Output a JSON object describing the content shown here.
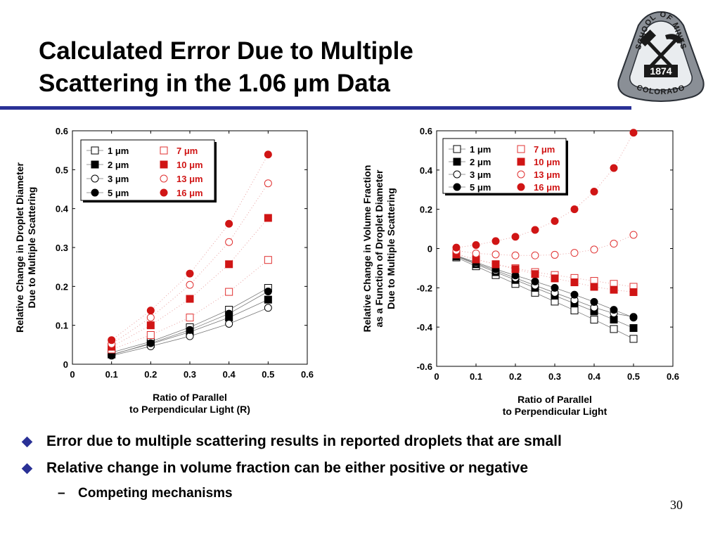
{
  "slide": {
    "title_lines": [
      "Calculated Error Due to Multiple",
      "Scattering in the 1.06 μm Data"
    ],
    "page_number": "30",
    "accent_color": "#2a3196"
  },
  "logo": {
    "top_text": "SCHOOL OF MINES",
    "year": "1874",
    "bottom_text": "COLORADO"
  },
  "bullets": [
    {
      "level": 1,
      "text": "Error due to multiple scattering results in reported droplets that are small"
    },
    {
      "level": 1,
      "text": "Relative change in volume fraction can be either positive or negative"
    },
    {
      "level": 2,
      "text": "Competing mechanisms"
    }
  ],
  "chart_data": [
    {
      "type": "scatter",
      "xlabel": "Ratio of Parallel\nto Perpendicular Light (R)",
      "ylabel": "Relative Change in Droplet Diameter\nDue to Multiple Scattering",
      "xlim": [
        0,
        0.6
      ],
      "ylim": [
        0,
        0.6
      ],
      "xticks": [
        "0",
        "0.1",
        "0.2",
        "0.3",
        "0.4",
        "0.5",
        "0.6"
      ],
      "yticks": [
        "0",
        "0.1",
        "0.2",
        "0.3",
        "0.4",
        "0.5",
        "0.6"
      ],
      "legend_position": "top-left",
      "series": [
        {
          "name": "1 μm",
          "marker": "square",
          "color": "#000000",
          "x": [
            0.1,
            0.2,
            0.3,
            0.4,
            0.5
          ],
          "y": [
            0.03,
            0.058,
            0.095,
            0.14,
            0.196
          ]
        },
        {
          "name": "2 μm",
          "marker": "square-filled",
          "color": "#000000",
          "x": [
            0.1,
            0.2,
            0.3,
            0.4,
            0.5
          ],
          "y": [
            0.025,
            0.052,
            0.083,
            0.12,
            0.166
          ]
        },
        {
          "name": "3 μm",
          "marker": "circle",
          "color": "#000000",
          "x": [
            0.1,
            0.2,
            0.3,
            0.4,
            0.5
          ],
          "y": [
            0.022,
            0.046,
            0.072,
            0.104,
            0.145
          ]
        },
        {
          "name": "5 μm",
          "marker": "circle-filled",
          "color": "#000000",
          "x": [
            0.1,
            0.2,
            0.3,
            0.4,
            0.5
          ],
          "y": [
            0.024,
            0.054,
            0.088,
            0.13,
            0.187
          ]
        },
        {
          "name": "7 μm",
          "marker": "square",
          "color": "#e03030",
          "x": [
            0.1,
            0.2,
            0.3,
            0.4,
            0.5
          ],
          "y": [
            0.038,
            0.075,
            0.12,
            0.186,
            0.268
          ]
        },
        {
          "name": "10 μm",
          "marker": "square-filled",
          "color": "#d01515",
          "x": [
            0.1,
            0.2,
            0.3,
            0.4,
            0.5
          ],
          "y": [
            0.045,
            0.1,
            0.168,
            0.257,
            0.376
          ]
        },
        {
          "name": "13 μm",
          "marker": "circle",
          "color": "#e03030",
          "x": [
            0.1,
            0.2,
            0.3,
            0.4,
            0.5
          ],
          "y": [
            0.052,
            0.12,
            0.204,
            0.314,
            0.465
          ]
        },
        {
          "name": "16 μm",
          "marker": "circle-filled",
          "color": "#d01515",
          "x": [
            0.1,
            0.2,
            0.3,
            0.4,
            0.5
          ],
          "y": [
            0.062,
            0.138,
            0.233,
            0.361,
            0.539
          ]
        }
      ]
    },
    {
      "type": "scatter",
      "xlabel": "Ratio of Parallel\nto Perpendicular Light",
      "ylabel": "Relative Change in Volume Fraction\nas a Function of Droplet Diameter\nDue to Multiple Scattering",
      "xlim": [
        0,
        0.6
      ],
      "ylim": [
        -0.6,
        0.6
      ],
      "xticks": [
        "0",
        "0.1",
        "0.2",
        "0.3",
        "0.4",
        "0.5",
        "0.6"
      ],
      "yticks": [
        "-0.6",
        "-0.4",
        "-0.2",
        "0",
        "0.2",
        "0.4",
        "0.6"
      ],
      "legend_position": "top-left",
      "series": [
        {
          "name": "1 μm",
          "marker": "square",
          "color": "#000000",
          "x": [
            0.05,
            0.1,
            0.15,
            0.2,
            0.25,
            0.3,
            0.35,
            0.4,
            0.45,
            0.5
          ],
          "y": [
            -0.045,
            -0.09,
            -0.135,
            -0.18,
            -0.225,
            -0.27,
            -0.315,
            -0.362,
            -0.41,
            -0.46
          ]
        },
        {
          "name": "2 μm",
          "marker": "square-filled",
          "color": "#000000",
          "x": [
            0.05,
            0.1,
            0.15,
            0.2,
            0.25,
            0.3,
            0.35,
            0.4,
            0.45,
            0.5
          ],
          "y": [
            -0.04,
            -0.08,
            -0.12,
            -0.16,
            -0.2,
            -0.24,
            -0.28,
            -0.32,
            -0.362,
            -0.405
          ]
        },
        {
          "name": "3 μm",
          "marker": "circle",
          "color": "#000000",
          "x": [
            0.05,
            0.1,
            0.15,
            0.2,
            0.25,
            0.3,
            0.35,
            0.4,
            0.45,
            0.5
          ],
          "y": [
            -0.038,
            -0.075,
            -0.112,
            -0.15,
            -0.188,
            -0.225,
            -0.262,
            -0.3,
            -0.33,
            -0.348
          ]
        },
        {
          "name": "5 μm",
          "marker": "circle-filled",
          "color": "#000000",
          "x": [
            0.05,
            0.1,
            0.15,
            0.2,
            0.25,
            0.3,
            0.35,
            0.4,
            0.45,
            0.5
          ],
          "y": [
            -0.036,
            -0.07,
            -0.105,
            -0.137,
            -0.168,
            -0.2,
            -0.235,
            -0.272,
            -0.312,
            -0.352
          ]
        },
        {
          "name": "7 μm",
          "marker": "square",
          "color": "#e03030",
          "x": [
            0.05,
            0.1,
            0.15,
            0.2,
            0.25,
            0.3,
            0.35,
            0.4,
            0.45,
            0.5
          ],
          "y": [
            -0.03,
            -0.055,
            -0.08,
            -0.1,
            -0.12,
            -0.135,
            -0.15,
            -0.165,
            -0.18,
            -0.195
          ]
        },
        {
          "name": "10 μm",
          "marker": "square-filled",
          "color": "#d01515",
          "x": [
            0.05,
            0.1,
            0.15,
            0.2,
            0.25,
            0.3,
            0.35,
            0.4,
            0.45,
            0.5
          ],
          "y": [
            -0.028,
            -0.055,
            -0.08,
            -0.105,
            -0.13,
            -0.152,
            -0.172,
            -0.195,
            -0.21,
            -0.222
          ]
        },
        {
          "name": "13 μm",
          "marker": "circle",
          "color": "#e03030",
          "x": [
            0.05,
            0.1,
            0.15,
            0.2,
            0.25,
            0.3,
            0.35,
            0.4,
            0.45,
            0.5
          ],
          "y": [
            -0.01,
            -0.025,
            -0.03,
            -0.035,
            -0.035,
            -0.032,
            -0.022,
            -0.005,
            0.025,
            0.07
          ]
        },
        {
          "name": "16 μm",
          "marker": "circle-filled",
          "color": "#d01515",
          "x": [
            0.05,
            0.1,
            0.15,
            0.2,
            0.25,
            0.3,
            0.35,
            0.4,
            0.45,
            0.5
          ],
          "y": [
            0.005,
            0.018,
            0.038,
            0.06,
            0.095,
            0.14,
            0.2,
            0.29,
            0.41,
            0.59
          ]
        }
      ]
    }
  ]
}
